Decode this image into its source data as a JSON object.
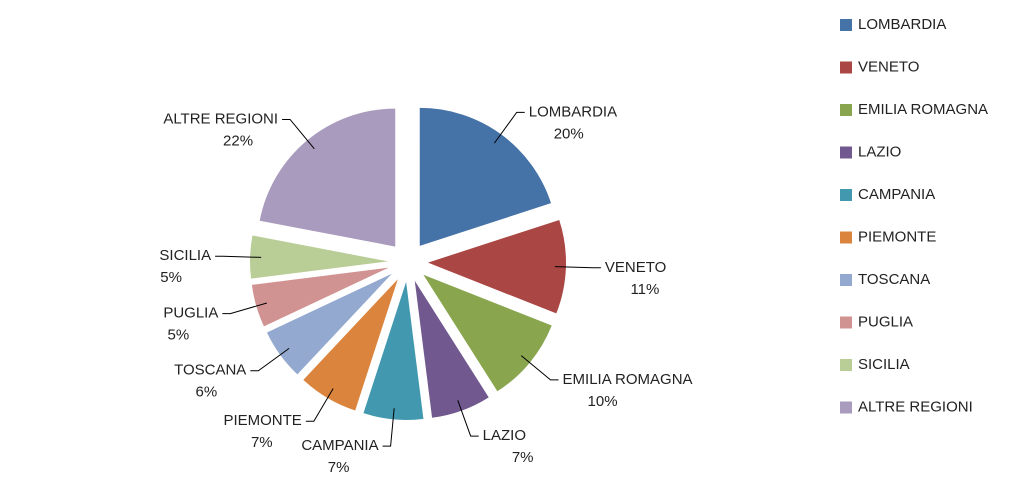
{
  "chart_data": {
    "type": "pie",
    "categories": [
      "LOMBARDIA",
      "VENETO",
      "EMILIA ROMAGNA",
      "LAZIO",
      "CAMPANIA",
      "PIEMONTE",
      "TOSCANA",
      "PUGLIA",
      "SICILIA",
      "ALTRE REGIONI"
    ],
    "values": [
      20,
      11,
      10,
      7,
      7,
      7,
      6,
      5,
      5,
      22
    ],
    "value_labels": [
      "20%",
      "11%",
      "10%",
      "7%",
      "7%",
      "7%",
      "6%",
      "5%",
      "5%",
      "22%"
    ],
    "colors": [
      "#4572a7",
      "#aa4643",
      "#89a54e",
      "#71588f",
      "#4198af",
      "#db843d",
      "#93a9cf",
      "#d19392",
      "#b9cd96",
      "#a99bbd"
    ],
    "legend": "right"
  }
}
